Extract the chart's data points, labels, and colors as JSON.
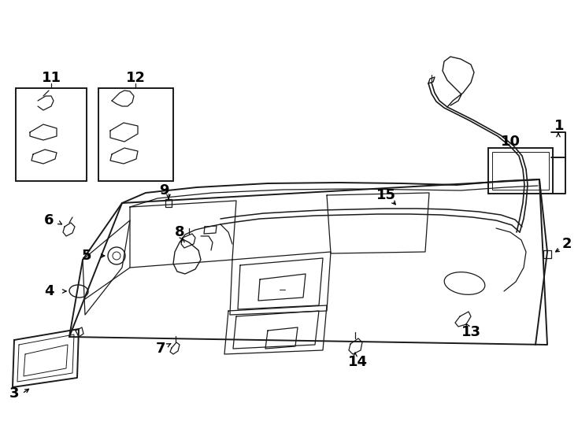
{
  "bg_color": "#ffffff",
  "line_color": "#1a1a1a",
  "fig_width": 7.34,
  "fig_height": 5.4,
  "dpi": 100,
  "label_fontsize": 13,
  "label_fontweight": "bold"
}
